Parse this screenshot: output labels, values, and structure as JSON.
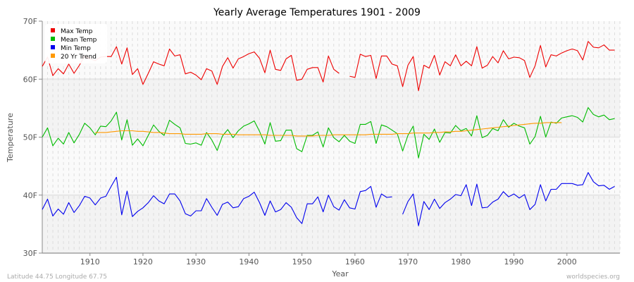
{
  "chart_data": {
    "type": "line",
    "title": "Yearly Average Temperatures 1901 - 2009",
    "xlabel": "Year",
    "ylabel": "Temperature",
    "xlim": [
      1901,
      2010
    ],
    "ylim": [
      30,
      70
    ],
    "x_ticks": [
      1910,
      1920,
      1930,
      1940,
      1950,
      1960,
      1970,
      1980,
      1990,
      2000
    ],
    "y_ticks": [
      {
        "v": 30,
        "label": "30F"
      },
      {
        "v": 40,
        "label": "40F"
      },
      {
        "v": 50,
        "label": "50F"
      },
      {
        "v": 60,
        "label": "60F"
      },
      {
        "v": 70,
        "label": "70F"
      }
    ],
    "grid": true,
    "legend_position": "top-left",
    "x_start": 1901,
    "series": [
      {
        "name": "Max Temp",
        "color": "#ee0000",
        "values": [
          62.2,
          63.8,
          60.6,
          61.8,
          60.9,
          62.6,
          61.0,
          62.4,
          64.0,
          63.5,
          63.2,
          63.8,
          63.9,
          63.9,
          65.6,
          62.6,
          65.4,
          60.8,
          61.8,
          59.1,
          61.0,
          63.0,
          62.6,
          62.3,
          65.2,
          64.0,
          64.2,
          60.9,
          61.2,
          60.7,
          59.9,
          61.8,
          61.4,
          59.1,
          62.2,
          63.7,
          61.9,
          63.5,
          63.9,
          64.4,
          64.7,
          63.6,
          61.1,
          65.0,
          61.7,
          61.5,
          63.5,
          64.1,
          59.8,
          60.0,
          61.7,
          62.0,
          62.0,
          59.5,
          64.0,
          61.7,
          61.0,
          null,
          60.5,
          60.3,
          64.3,
          63.9,
          64.1,
          60.1,
          64.0,
          64.0,
          62.6,
          62.3,
          58.7,
          62.4,
          63.9,
          58.0,
          62.4,
          61.9,
          64.1,
          60.7,
          63.0,
          62.3,
          64.2,
          62.3,
          63.1,
          62.3,
          65.6,
          61.9,
          62.4,
          63.9,
          62.8,
          64.9,
          63.5,
          63.8,
          63.7,
          63.2,
          60.3,
          62.3,
          65.8,
          62.1,
          64.2,
          64.0,
          64.5,
          64.9,
          65.2,
          64.9,
          63.3,
          66.5,
          65.5,
          65.4,
          65.9,
          65.0,
          65.0
        ]
      },
      {
        "name": "Mean Temp",
        "color": "#00bb00",
        "values": [
          50.0,
          51.6,
          48.5,
          49.8,
          48.8,
          50.8,
          49.0,
          50.5,
          52.4,
          51.6,
          50.4,
          51.9,
          51.8,
          52.8,
          54.3,
          49.5,
          53.0,
          48.6,
          49.7,
          48.5,
          50.3,
          52.1,
          51.0,
          50.3,
          52.9,
          52.2,
          51.6,
          48.9,
          48.8,
          49.0,
          48.6,
          50.8,
          49.5,
          47.7,
          50.2,
          51.3,
          49.9,
          51.1,
          51.9,
          52.3,
          52.8,
          51.0,
          48.8,
          52.5,
          49.3,
          49.4,
          51.2,
          51.2,
          48.0,
          47.5,
          50.3,
          50.3,
          50.9,
          48.3,
          51.6,
          49.9,
          49.2,
          50.3,
          49.3,
          48.9,
          52.2,
          52.2,
          52.7,
          48.9,
          52.1,
          51.8,
          51.2,
          50.6,
          47.6,
          50.3,
          51.9,
          46.4,
          50.5,
          49.6,
          51.4,
          49.1,
          50.8,
          50.7,
          52.0,
          51.1,
          51.5,
          50.2,
          53.7,
          49.9,
          50.3,
          51.5,
          51.1,
          53.0,
          51.7,
          52.4,
          51.9,
          51.6,
          48.8,
          50.1,
          53.6,
          50.0,
          52.6,
          52.4,
          53.3,
          53.5,
          53.7,
          53.4,
          52.6,
          55.1,
          53.9,
          53.5,
          53.8,
          53.0,
          53.2
        ]
      },
      {
        "name": "Min Temp",
        "color": "#0000ee",
        "values": [
          37.5,
          39.3,
          36.4,
          37.6,
          36.7,
          38.7,
          37.0,
          38.2,
          39.8,
          39.5,
          38.3,
          39.5,
          39.8,
          41.5,
          43.1,
          36.6,
          40.7,
          36.3,
          37.2,
          37.8,
          38.7,
          39.9,
          39.0,
          38.5,
          40.2,
          40.2,
          39.0,
          36.8,
          36.4,
          37.3,
          37.3,
          39.4,
          37.9,
          36.5,
          38.4,
          38.8,
          37.8,
          38.0,
          39.4,
          39.8,
          40.5,
          38.7,
          36.5,
          39.0,
          37.1,
          37.5,
          38.7,
          37.9,
          36.1,
          35.1,
          38.5,
          38.5,
          39.7,
          37.1,
          40.0,
          38.0,
          37.4,
          39.2,
          37.8,
          37.6,
          40.6,
          40.8,
          41.5,
          37.9,
          40.2,
          39.6,
          39.7,
          null,
          36.7,
          38.9,
          40.2,
          34.7,
          38.9,
          37.5,
          39.3,
          37.7,
          38.7,
          39.3,
          40.1,
          39.9,
          41.8,
          38.2,
          41.9,
          37.8,
          37.9,
          38.8,
          39.3,
          40.6,
          39.7,
          40.2,
          39.5,
          40.1,
          37.5,
          38.4,
          41.8,
          39.0,
          41.0,
          41.0,
          42.0,
          42.0,
          42.0,
          41.7,
          41.8,
          43.9,
          42.3,
          41.6,
          41.7,
          41.0,
          41.5
        ]
      },
      {
        "name": "20 Yr Trend",
        "color": "#ff9900",
        "x_start": 1911,
        "values": [
          50.8,
          50.8,
          50.8,
          50.9,
          51.0,
          51.1,
          51.1,
          51.1,
          51.0,
          51.0,
          50.9,
          50.8,
          50.8,
          50.7,
          50.6,
          50.6,
          50.6,
          50.5,
          50.5,
          50.5,
          50.5,
          50.6,
          50.6,
          50.6,
          50.5,
          50.5,
          50.5,
          50.4,
          50.4,
          50.4,
          50.4,
          50.4,
          50.4,
          50.3,
          50.3,
          50.3,
          50.3,
          50.3,
          50.2,
          50.2,
          50.2,
          50.2,
          50.3,
          50.3,
          50.3,
          50.4,
          50.4,
          50.4,
          50.4,
          50.4,
          50.4,
          50.4,
          50.5,
          50.5,
          50.5,
          50.5,
          50.5,
          50.6,
          50.6,
          50.6,
          50.7,
          50.7,
          50.7,
          50.7,
          50.8,
          50.8,
          50.9,
          50.9,
          51.0,
          51.0,
          51.1,
          51.2,
          51.3,
          51.4,
          51.5,
          51.6,
          51.7,
          51.8,
          51.9,
          52.0,
          52.1,
          52.2,
          52.3,
          52.4,
          52.4,
          52.5,
          52.5,
          52.5,
          52.5
        ]
      }
    ]
  },
  "footer": {
    "location": "Latitude 44.75 Longitude 67.75",
    "site": "worldspecies.org"
  }
}
